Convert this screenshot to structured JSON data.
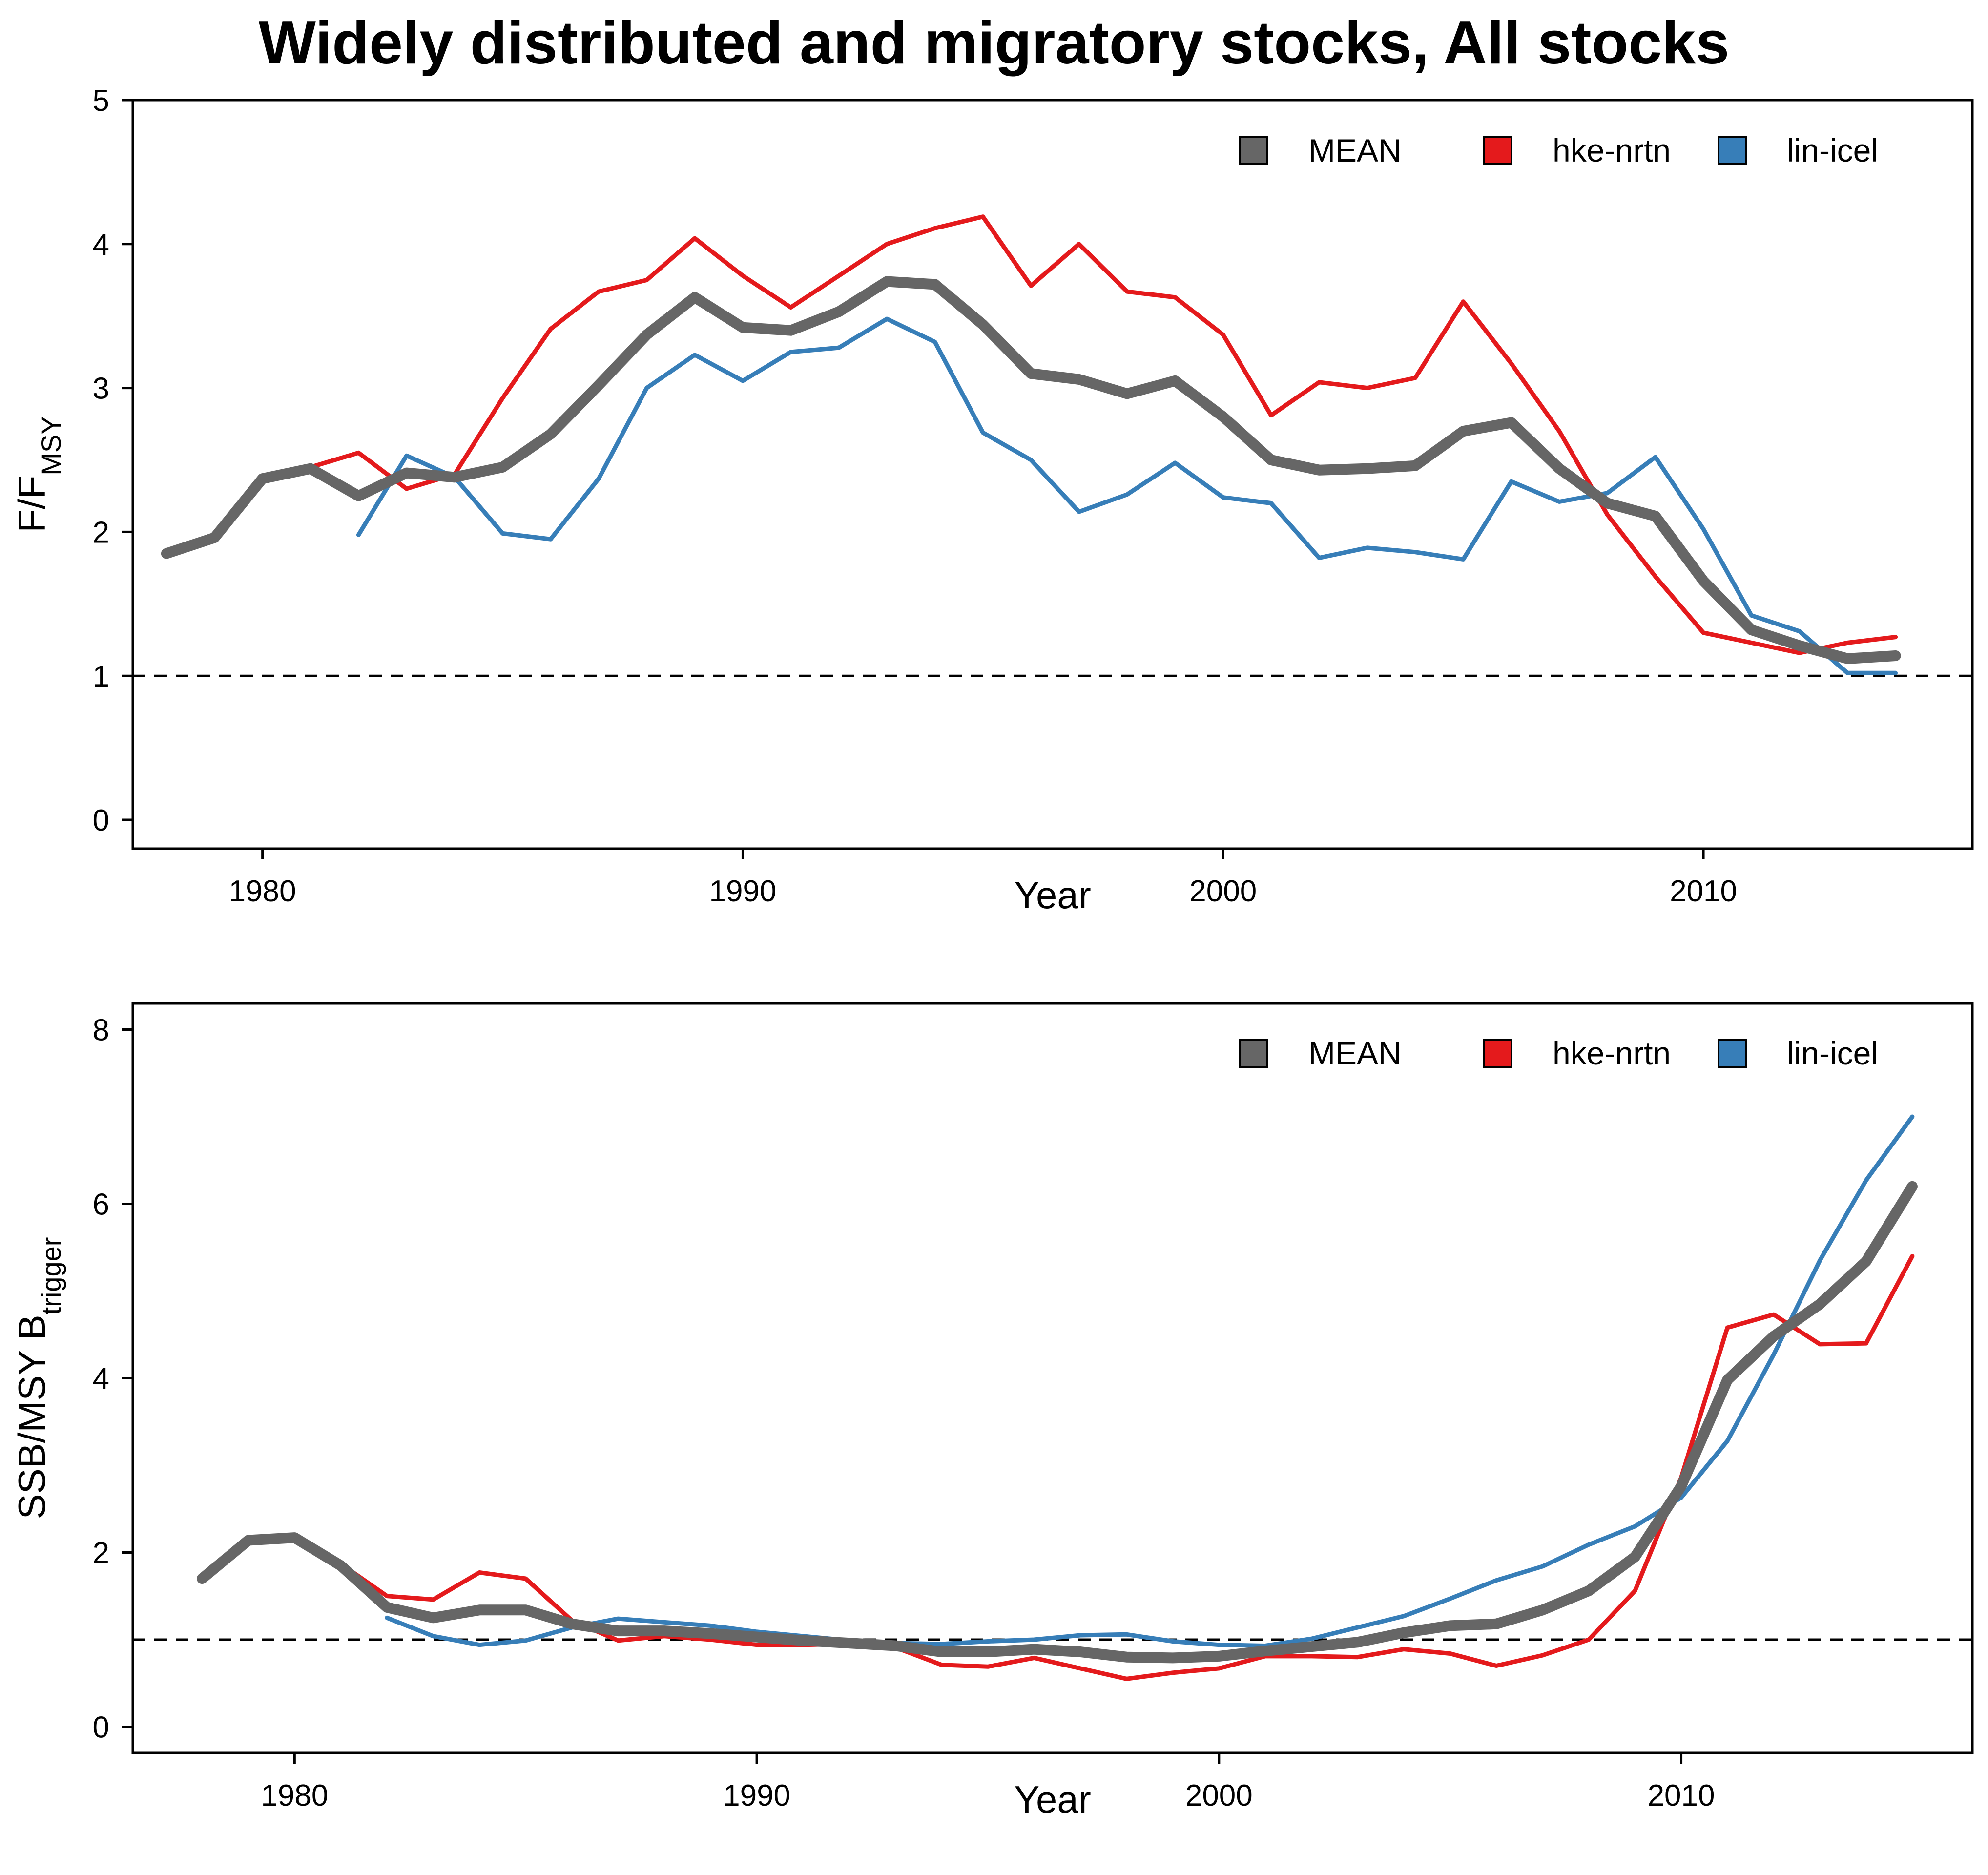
{
  "title": "Widely distributed and migratory stocks, All stocks",
  "colors": {
    "MEAN": "#666666",
    "hke-nrtn": "#e41a1c",
    "lin-icel": "#377eb8"
  },
  "chart_data": [
    {
      "type": "line",
      "xlabel": "Year",
      "ylabel": {
        "main": "F/F",
        "sub": "MSY"
      },
      "xlim": [
        1977.3,
        2015.6
      ],
      "ylim": [
        -0.2,
        5
      ],
      "xticks": [
        1980,
        1990,
        2000,
        2010
      ],
      "yticks": [
        0,
        1,
        2,
        3,
        4,
        5
      ],
      "reference_line": 1,
      "legend": {
        "placement": "top-right",
        "entries": [
          "MEAN",
          "hke-nrtn",
          "lin-icel"
        ]
      },
      "series": [
        {
          "name": "MEAN",
          "x": [
            1978,
            1979,
            1980,
            1981,
            1982,
            1983,
            1984,
            1985,
            1986,
            1987,
            1988,
            1989,
            1990,
            1991,
            1992,
            1993,
            1994,
            1995,
            1996,
            1997,
            1998,
            1999,
            2000,
            2001,
            2002,
            2003,
            2004,
            2005,
            2006,
            2007,
            2008,
            2009,
            2010,
            2011,
            2012,
            2013,
            2014
          ],
          "y": [
            1.85,
            1.96,
            2.37,
            2.44,
            2.25,
            2.41,
            2.38,
            2.45,
            2.68,
            3.02,
            3.37,
            3.63,
            3.42,
            3.4,
            3.53,
            3.74,
            3.72,
            3.44,
            3.1,
            3.06,
            2.96,
            3.05,
            2.8,
            2.5,
            2.43,
            2.44,
            2.46,
            2.7,
            2.76,
            2.44,
            2.2,
            2.11,
            1.66,
            1.32,
            1.21,
            1.12,
            1.14
          ]
        },
        {
          "name": "hke-nrtn",
          "x": [
            1978,
            1979,
            1980,
            1981,
            1982,
            1983,
            1984,
            1985,
            1986,
            1987,
            1988,
            1989,
            1990,
            1991,
            1992,
            1993,
            1994,
            1995,
            1996,
            1997,
            1998,
            1999,
            2000,
            2001,
            2002,
            2003,
            2004,
            2005,
            2006,
            2007,
            2008,
            2009,
            2010,
            2011,
            2012,
            2013,
            2014
          ],
          "y": [
            1.84,
            1.97,
            2.35,
            2.45,
            2.55,
            2.3,
            2.4,
            2.93,
            3.41,
            3.67,
            3.75,
            4.04,
            3.78,
            3.56,
            3.78,
            4.0,
            4.11,
            4.19,
            3.71,
            4.0,
            3.67,
            3.63,
            3.37,
            2.81,
            3.04,
            3.0,
            3.07,
            3.6,
            3.17,
            2.7,
            2.12,
            1.69,
            1.3,
            1.23,
            1.16,
            1.23,
            1.27
          ]
        },
        {
          "name": "lin-icel",
          "x": [
            1982,
            1983,
            1984,
            1985,
            1986,
            1987,
            1988,
            1989,
            1990,
            1991,
            1992,
            1993,
            1994,
            1995,
            1996,
            1997,
            1998,
            1999,
            2000,
            2001,
            2002,
            2003,
            2004,
            2005,
            2006,
            2007,
            2008,
            2009,
            2010,
            2011,
            2012,
            2013,
            2014
          ],
          "y": [
            1.98,
            2.53,
            2.38,
            1.99,
            1.95,
            2.37,
            3.0,
            3.23,
            3.05,
            3.25,
            3.28,
            3.48,
            3.32,
            2.69,
            2.5,
            2.14,
            2.26,
            2.48,
            2.24,
            2.2,
            1.82,
            1.89,
            1.86,
            1.81,
            2.35,
            2.21,
            2.27,
            2.52,
            2.02,
            1.42,
            1.31,
            1.02,
            1.02
          ]
        }
      ]
    },
    {
      "type": "line",
      "xlabel": "Year",
      "ylabel": {
        "main": "SSB/MSY B",
        "sub": "trigger"
      },
      "xlim": [
        1976.5,
        2016.3
      ],
      "ylim": [
        -0.3,
        8.3
      ],
      "xticks": [
        1980,
        1990,
        2000,
        2010
      ],
      "yticks": [
        0,
        2,
        4,
        6,
        8
      ],
      "reference_line": 1,
      "legend": {
        "placement": "top-right",
        "entries": [
          "MEAN",
          "hke-nrtn",
          "lin-icel"
        ]
      },
      "series": [
        {
          "name": "MEAN",
          "x": [
            1978,
            1979,
            1980,
            1981,
            1982,
            1983,
            1984,
            1985,
            1986,
            1987,
            1988,
            1989,
            1990,
            1991,
            1992,
            1993,
            1994,
            1995,
            1996,
            1997,
            1998,
            1999,
            2000,
            2001,
            2002,
            2003,
            2004,
            2005,
            2006,
            2007,
            2008,
            2009,
            2010,
            2011,
            2012,
            2013,
            2014,
            2015
          ],
          "y": [
            1.7,
            2.14,
            2.17,
            1.85,
            1.37,
            1.25,
            1.34,
            1.34,
            1.18,
            1.1,
            1.1,
            1.07,
            1.03,
            0.99,
            0.96,
            0.93,
            0.86,
            0.86,
            0.89,
            0.86,
            0.8,
            0.79,
            0.81,
            0.87,
            0.92,
            0.97,
            1.08,
            1.16,
            1.18,
            1.34,
            1.56,
            1.95,
            2.76,
            3.98,
            4.48,
            4.85,
            5.34,
            6.2
          ]
        },
        {
          "name": "hke-nrtn",
          "x": [
            1978,
            1979,
            1980,
            1981,
            1982,
            1983,
            1984,
            1985,
            1986,
            1987,
            1988,
            1989,
            1990,
            1991,
            1992,
            1993,
            1994,
            1995,
            1996,
            1997,
            1998,
            1999,
            2000,
            2001,
            2002,
            2003,
            2004,
            2005,
            2006,
            2007,
            2008,
            2009,
            2010,
            2011,
            2012,
            2013,
            2014,
            2015
          ],
          "y": [
            1.7,
            2.12,
            2.15,
            1.87,
            1.5,
            1.46,
            1.77,
            1.7,
            1.22,
            0.99,
            1.04,
            1.0,
            0.94,
            0.94,
            0.95,
            0.91,
            0.71,
            0.69,
            0.79,
            0.67,
            0.55,
            0.62,
            0.67,
            0.81,
            0.81,
            0.8,
            0.89,
            0.84,
            0.7,
            0.82,
            1.0,
            1.56,
            2.86,
            4.58,
            4.73,
            4.39,
            4.4,
            5.4
          ]
        },
        {
          "name": "lin-icel",
          "x": [
            1982,
            1983,
            1984,
            1985,
            1986,
            1987,
            1988,
            1989,
            1990,
            1991,
            1992,
            1993,
            1994,
            1995,
            1996,
            1997,
            1998,
            1999,
            2000,
            2001,
            2002,
            2003,
            2004,
            2005,
            2006,
            2007,
            2008,
            2009,
            2010,
            2011,
            2012,
            2013,
            2014,
            2015
          ],
          "y": [
            1.25,
            1.04,
            0.94,
            0.99,
            1.14,
            1.24,
            1.2,
            1.16,
            1.09,
            1.04,
            0.99,
            0.96,
            0.95,
            0.98,
            1.0,
            1.05,
            1.06,
            0.98,
            0.94,
            0.93,
            1.01,
            1.14,
            1.27,
            1.47,
            1.68,
            1.84,
            2.09,
            2.3,
            2.63,
            3.28,
            4.27,
            5.35,
            6.27,
            7.0
          ]
        }
      ]
    }
  ]
}
